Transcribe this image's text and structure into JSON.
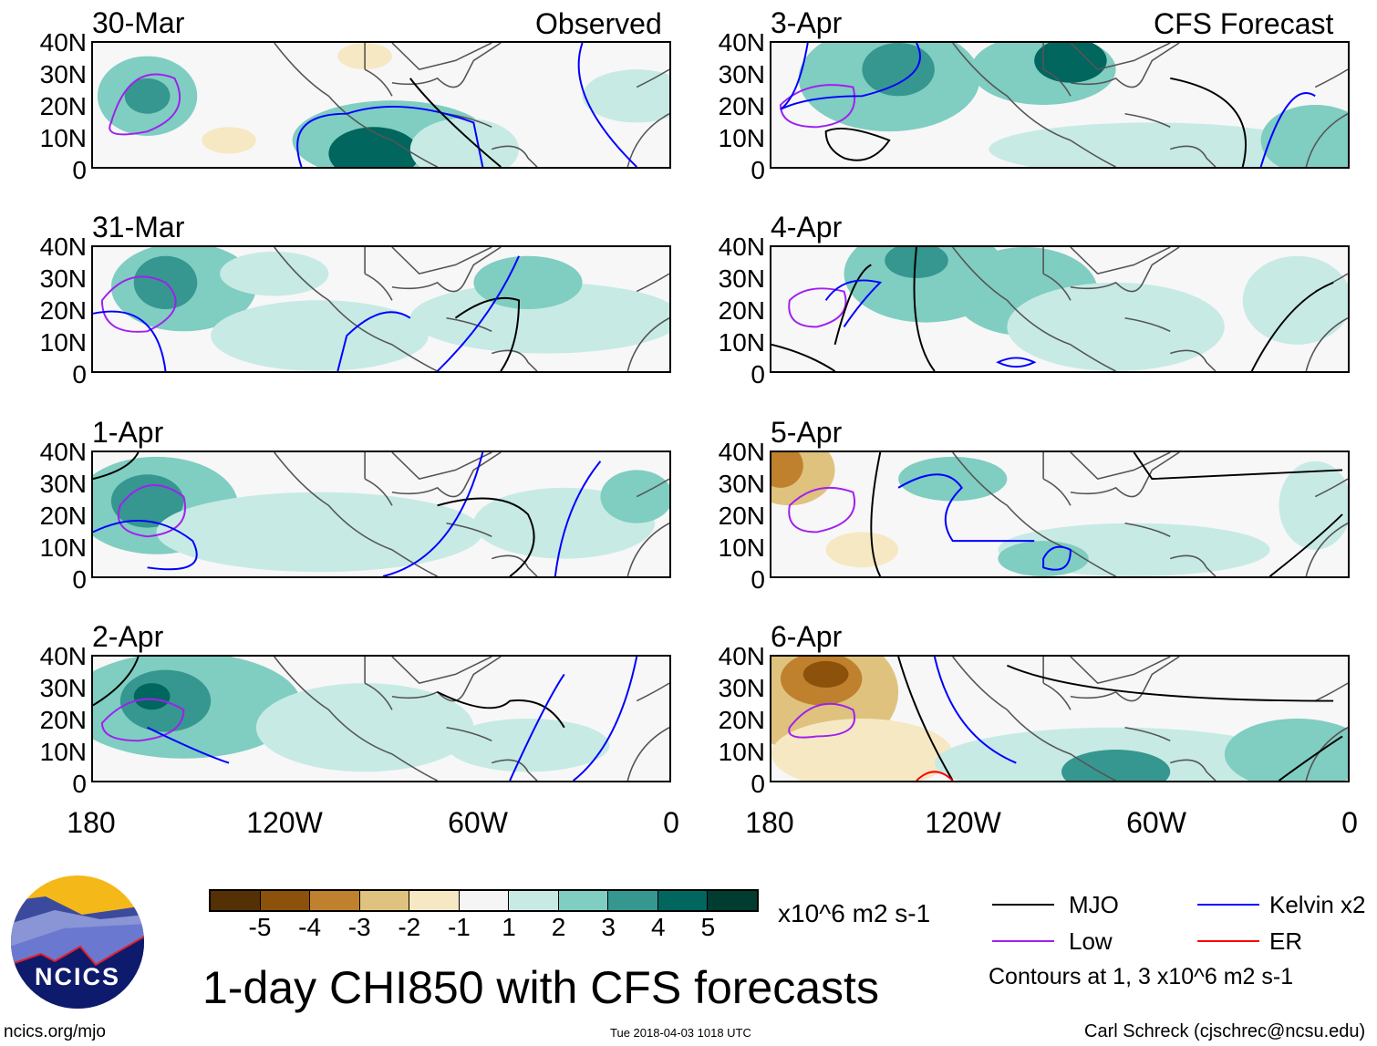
{
  "left_title": "Observed",
  "right_title": "CFS Forecast",
  "left_panels": [
    "30-Mar",
    "31-Mar",
    "1-Apr",
    "2-Apr"
  ],
  "right_panels": [
    "3-Apr",
    "4-Apr",
    "5-Apr",
    "6-Apr"
  ],
  "lat_ticks": [
    "40N",
    "30N",
    "20N",
    "10N",
    "0"
  ],
  "lon_ticks": [
    "180",
    "120W",
    "60W",
    "0"
  ],
  "colorbar": {
    "colors": [
      "#543005",
      "#8c510a",
      "#bf812d",
      "#dfc27d",
      "#f6e8c3",
      "#f5f5f5",
      "#c7eae5",
      "#80cdc1",
      "#35978f",
      "#01665e",
      "#003c30"
    ],
    "labels": [
      "-5",
      "-4",
      "-3",
      "-2",
      "-1",
      "1",
      "2",
      "3",
      "4",
      "5"
    ],
    "units": "x10^6 m2 s-1"
  },
  "title": "1-day CHI850 with CFS forecasts",
  "timestamp": "Tue 2018-04-03 1018 UTC",
  "logo_text": "NCICS",
  "site": "ncics.org/mjo",
  "credit": "Carl Schreck (cjschrec@ncsu.edu)",
  "legend": {
    "items": [
      {
        "label": "MJO",
        "color": "#000000"
      },
      {
        "label": "Kelvin x2",
        "color": "#0000ff"
      },
      {
        "label": "Low",
        "color": "#a020f0"
      },
      {
        "label": "ER",
        "color": "#ff0000"
      }
    ],
    "note": "Contours at 1, 3 x10^6 m2 s-1"
  }
}
